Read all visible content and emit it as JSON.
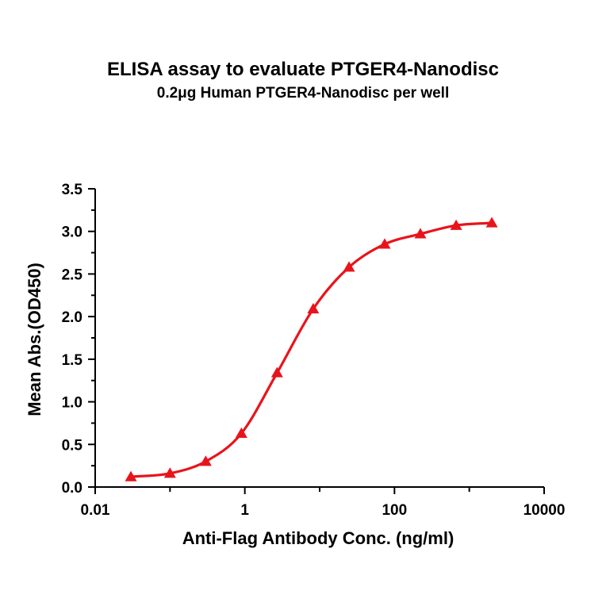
{
  "chart_data": {
    "type": "scatter",
    "title": "ELISA assay to evaluate PTGER4-Nanodisc",
    "subtitle": "0.2μg Human PTGER4-Nanodisc per well",
    "xlabel": "Anti-Flag Antibody Conc. (ng/ml)",
    "ylabel": "Mean Abs.(OD450)",
    "xscale": "log",
    "xlim": [
      0.01,
      10000
    ],
    "ylim": [
      0,
      3.5
    ],
    "xticks": [
      {
        "value": 0.01,
        "label": "0.01"
      },
      {
        "value": 1,
        "label": "1"
      },
      {
        "value": 100,
        "label": "100"
      },
      {
        "value": 10000,
        "label": "10000"
      }
    ],
    "yticks": [
      {
        "value": 0,
        "label": "0.0"
      },
      {
        "value": 0.5,
        "label": "0.5"
      },
      {
        "value": 1.0,
        "label": "1.0"
      },
      {
        "value": 1.5,
        "label": "1.5"
      },
      {
        "value": 2.0,
        "label": "2.0"
      },
      {
        "value": 2.5,
        "label": "2.5"
      },
      {
        "value": 3.0,
        "label": "3.0"
      },
      {
        "value": 3.5,
        "label": "3.5"
      }
    ],
    "grid": false,
    "series": [
      {
        "marker": "triangle",
        "color": "#e8141c",
        "fit": "4-parameter logistic curve",
        "x": [
          0.03,
          0.1,
          0.3,
          0.9,
          2.7,
          8.2,
          24.7,
          74,
          222,
          667,
          2000
        ],
        "y": [
          0.12,
          0.16,
          0.3,
          0.63,
          1.34,
          2.09,
          2.58,
          2.85,
          2.97,
          3.07,
          3.1
        ]
      }
    ]
  }
}
